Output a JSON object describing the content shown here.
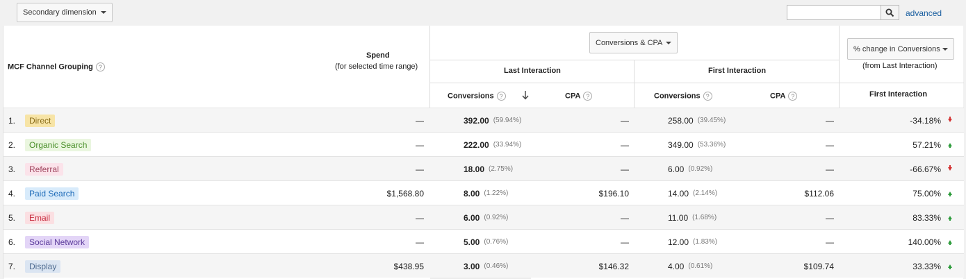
{
  "toolbar": {
    "secondary_dimension_label": "Secondary dimension",
    "search_placeholder": "",
    "advanced_label": "advanced"
  },
  "headers": {
    "channel_grouping": "MCF Channel Grouping",
    "spend": "Spend",
    "spend_sub": "(for selected time range)",
    "metric_selector": "Conversions & CPA",
    "last_interaction": "Last Interaction",
    "first_interaction": "First Interaction",
    "conversions": "Conversions",
    "cpa": "CPA",
    "change_selector": "% change in Conversions",
    "change_sub": "(from Last Interaction)",
    "change_first_interaction": "First Interaction",
    "help": "?"
  },
  "rows": [
    {
      "index": "1.",
      "channel": "Direct",
      "badge_bg": "#f7e4a6",
      "badge_fg": "#8a6d1a",
      "spend": "—",
      "li_conv": "392.00",
      "li_pct": "(59.94%)",
      "li_cpa": "—",
      "fi_conv": "258.00",
      "fi_pct": "(39.45%)",
      "fi_cpa": "—",
      "change": "-34.18%",
      "dir": "down"
    },
    {
      "index": "2.",
      "channel": "Organic Search",
      "badge_bg": "#eaf6df",
      "badge_fg": "#4a8f2a",
      "spend": "—",
      "li_conv": "222.00",
      "li_pct": "(33.94%)",
      "li_cpa": "—",
      "fi_conv": "349.00",
      "fi_pct": "(53.36%)",
      "fi_cpa": "—",
      "change": "57.21%",
      "dir": "up"
    },
    {
      "index": "3.",
      "channel": "Referral",
      "badge_bg": "#fbe3ea",
      "badge_fg": "#a0455f",
      "spend": "—",
      "li_conv": "18.00",
      "li_pct": "(2.75%)",
      "li_cpa": "—",
      "fi_conv": "6.00",
      "fi_pct": "(0.92%)",
      "fi_cpa": "—",
      "change": "-66.67%",
      "dir": "down"
    },
    {
      "index": "4.",
      "channel": "Paid Search",
      "badge_bg": "#d8ebfb",
      "badge_fg": "#1e6bb8",
      "spend": "$1,568.80",
      "li_conv": "8.00",
      "li_pct": "(1.22%)",
      "li_cpa": "$196.10",
      "fi_conv": "14.00",
      "fi_pct": "(2.14%)",
      "fi_cpa": "$112.06",
      "change": "75.00%",
      "dir": "up"
    },
    {
      "index": "5.",
      "channel": "Email",
      "badge_bg": "#fbdfe2",
      "badge_fg": "#c6283b",
      "spend": "—",
      "li_conv": "6.00",
      "li_pct": "(0.92%)",
      "li_cpa": "—",
      "fi_conv": "11.00",
      "fi_pct": "(1.68%)",
      "fi_cpa": "—",
      "change": "83.33%",
      "dir": "up"
    },
    {
      "index": "6.",
      "channel": "Social Network",
      "badge_bg": "#e3d5f7",
      "badge_fg": "#5b3a9b",
      "spend": "—",
      "li_conv": "5.00",
      "li_pct": "(0.76%)",
      "li_cpa": "—",
      "fi_conv": "12.00",
      "fi_pct": "(1.83%)",
      "fi_cpa": "—",
      "change": "140.00%",
      "dir": "up"
    },
    {
      "index": "7.",
      "channel": "Display",
      "badge_bg": "#dbe5f2",
      "badge_fg": "#4d6a8f",
      "spend": "$438.95",
      "li_conv": "3.00",
      "li_pct": "(0.46%)",
      "li_cpa": "$146.32",
      "fi_conv": "4.00",
      "fi_pct": "(0.61%)",
      "fi_cpa": "$109.74",
      "change": "33.33%",
      "dir": "up"
    }
  ]
}
